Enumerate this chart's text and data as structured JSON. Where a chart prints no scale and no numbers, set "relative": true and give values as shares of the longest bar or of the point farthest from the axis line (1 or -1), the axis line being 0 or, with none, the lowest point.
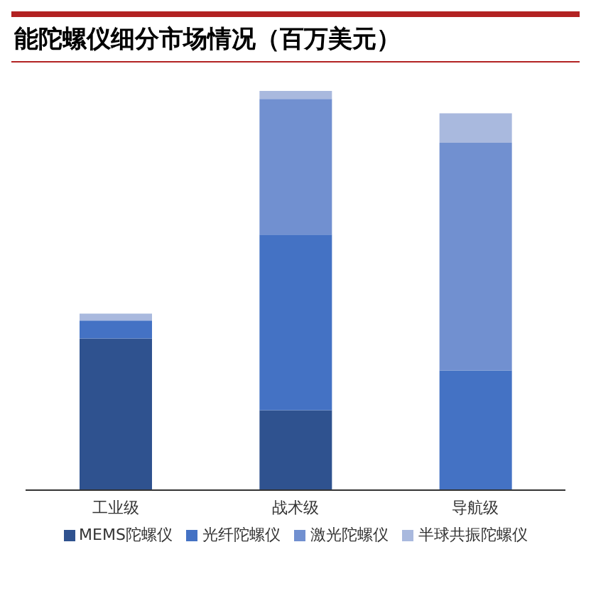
{
  "chart_data": {
    "type": "bar",
    "title": "能陀螺仪细分市场情况（百万美元）",
    "categories": [
      "工业级",
      "战术级",
      "导航级"
    ],
    "stacked": true,
    "relative": true,
    "legend": "bottom",
    "grid": false,
    "series": [
      {
        "name": "MEMS陀螺仪",
        "color": "#2f528f",
        "values": [
          0.38,
          0.2,
          0
        ]
      },
      {
        "name": "光纤陀螺仪",
        "color": "#4472c4",
        "values": [
          0.045,
          0.44,
          0.3
        ]
      },
      {
        "name": "激光陀螺仪",
        "color": "#7190d0",
        "values": [
          0,
          0.34,
          0.57
        ]
      },
      {
        "name": "半球共振陀螺仪",
        "color": "#a9b9de",
        "values": [
          0.017,
          0.02,
          0.074
        ]
      }
    ]
  }
}
